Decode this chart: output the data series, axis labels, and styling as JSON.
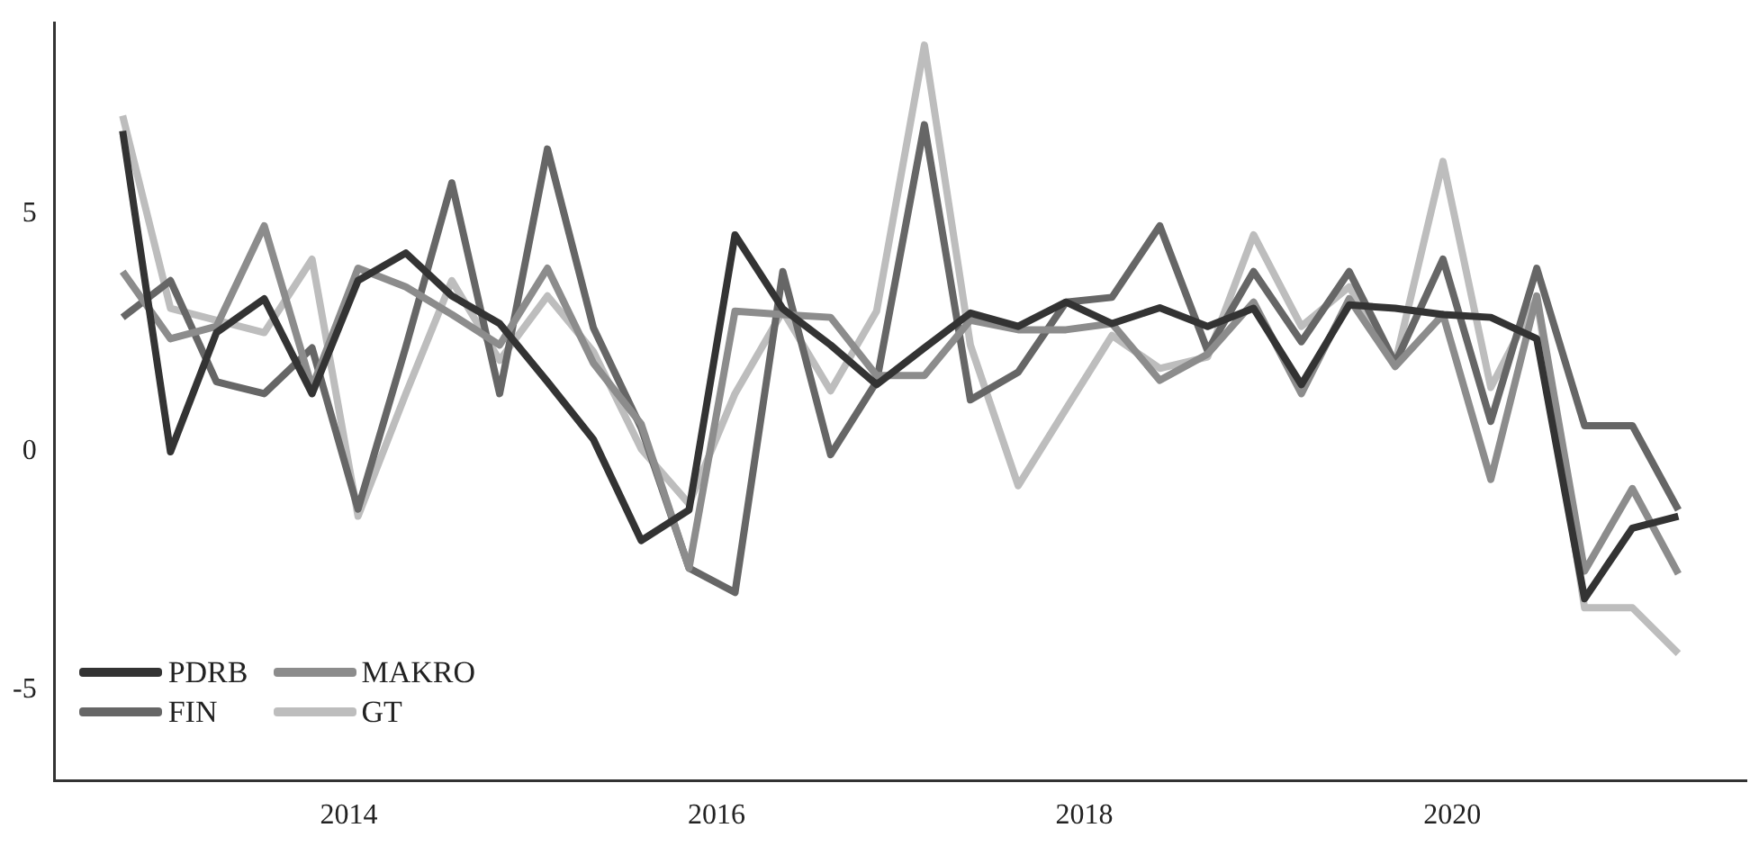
{
  "chart_data": {
    "type": "line",
    "x": [
      2012.77,
      2013.03,
      2013.28,
      2013.54,
      2013.8,
      2014.05,
      2014.31,
      2014.56,
      2014.82,
      2015.08,
      2015.33,
      2015.59,
      2015.85,
      2016.1,
      2016.36,
      2016.62,
      2016.87,
      2017.13,
      2017.38,
      2017.64,
      2017.9,
      2018.15,
      2018.41,
      2018.67,
      2018.92,
      2019.18,
      2019.44,
      2019.69,
      2019.95,
      2020.21,
      2020.46,
      2020.72,
      2020.98,
      2021.23
    ],
    "series": [
      {
        "name": "PDRB",
        "color": "#333333",
        "values": [
          6.73,
          0,
          2.5,
          3.21,
          1.22,
          3.59,
          4.17,
          3.27,
          2.69,
          1.47,
          0.26,
          -1.86,
          -1.22,
          4.55,
          3.0,
          2.24,
          1.41,
          2.18,
          2.91,
          2.63,
          3.14,
          2.69,
          3.02,
          2.63,
          3.01,
          1.41,
          3.08,
          3.01,
          2.88,
          2.82,
          2.37,
          -3.08,
          -1.6,
          -1.35
        ]
      },
      {
        "name": "MAKRO",
        "color": "#8c8c8c",
        "values": [
          3.78,
          2.37,
          2.63,
          4.74,
          1.35,
          3.85,
          3.46,
          2.88,
          2.24,
          3.85,
          1.86,
          0.58,
          -2.44,
          2.95,
          2.88,
          2.82,
          1.6,
          1.6,
          2.76,
          2.56,
          2.56,
          2.69,
          1.5,
          2.05,
          3.14,
          1.22,
          3.21,
          1.79,
          2.88,
          -0.58,
          3.27,
          -2.5,
          -0.77,
          -2.56
        ]
      },
      {
        "name": "FIN",
        "color": "#666666",
        "values": [
          2.82,
          3.59,
          1.47,
          1.22,
          2.18,
          -1.2,
          2.2,
          5.64,
          1.22,
          6.35,
          2.6,
          0.5,
          -2.44,
          -2.95,
          3.78,
          -0.06,
          1.47,
          6.86,
          1.09,
          1.67,
          3.14,
          3.24,
          4.74,
          2.12,
          3.78,
          2.31,
          3.78,
          1.86,
          4.04,
          0.64,
          3.85,
          0.55,
          0.55,
          -1.22
        ]
      },
      {
        "name": "GT",
        "color": "#bdbdbd",
        "values": [
          7.05,
          3.01,
          2.76,
          2.5,
          4.04,
          -1.35,
          1.22,
          3.59,
          1.92,
          3.27,
          2.1,
          0.06,
          -1.09,
          1.22,
          2.95,
          1.28,
          2.95,
          8.53,
          2.24,
          -0.71,
          0.9,
          2.44,
          1.75,
          1.99,
          4.55,
          2.63,
          3.46,
          1.86,
          6.09,
          1.35,
          3.21,
          -3.27,
          -3.27,
          -4.23
        ]
      }
    ],
    "xlim": [
      2012.4,
      2021.6
    ],
    "xticks": [
      2014,
      2016,
      2018,
      2020
    ],
    "ylim": [
      -6.9,
      9.0
    ],
    "yticks": [
      -5,
      0,
      5
    ],
    "grid": false,
    "legend": "bottom left",
    "marker": "none",
    "line_style": "solid"
  }
}
